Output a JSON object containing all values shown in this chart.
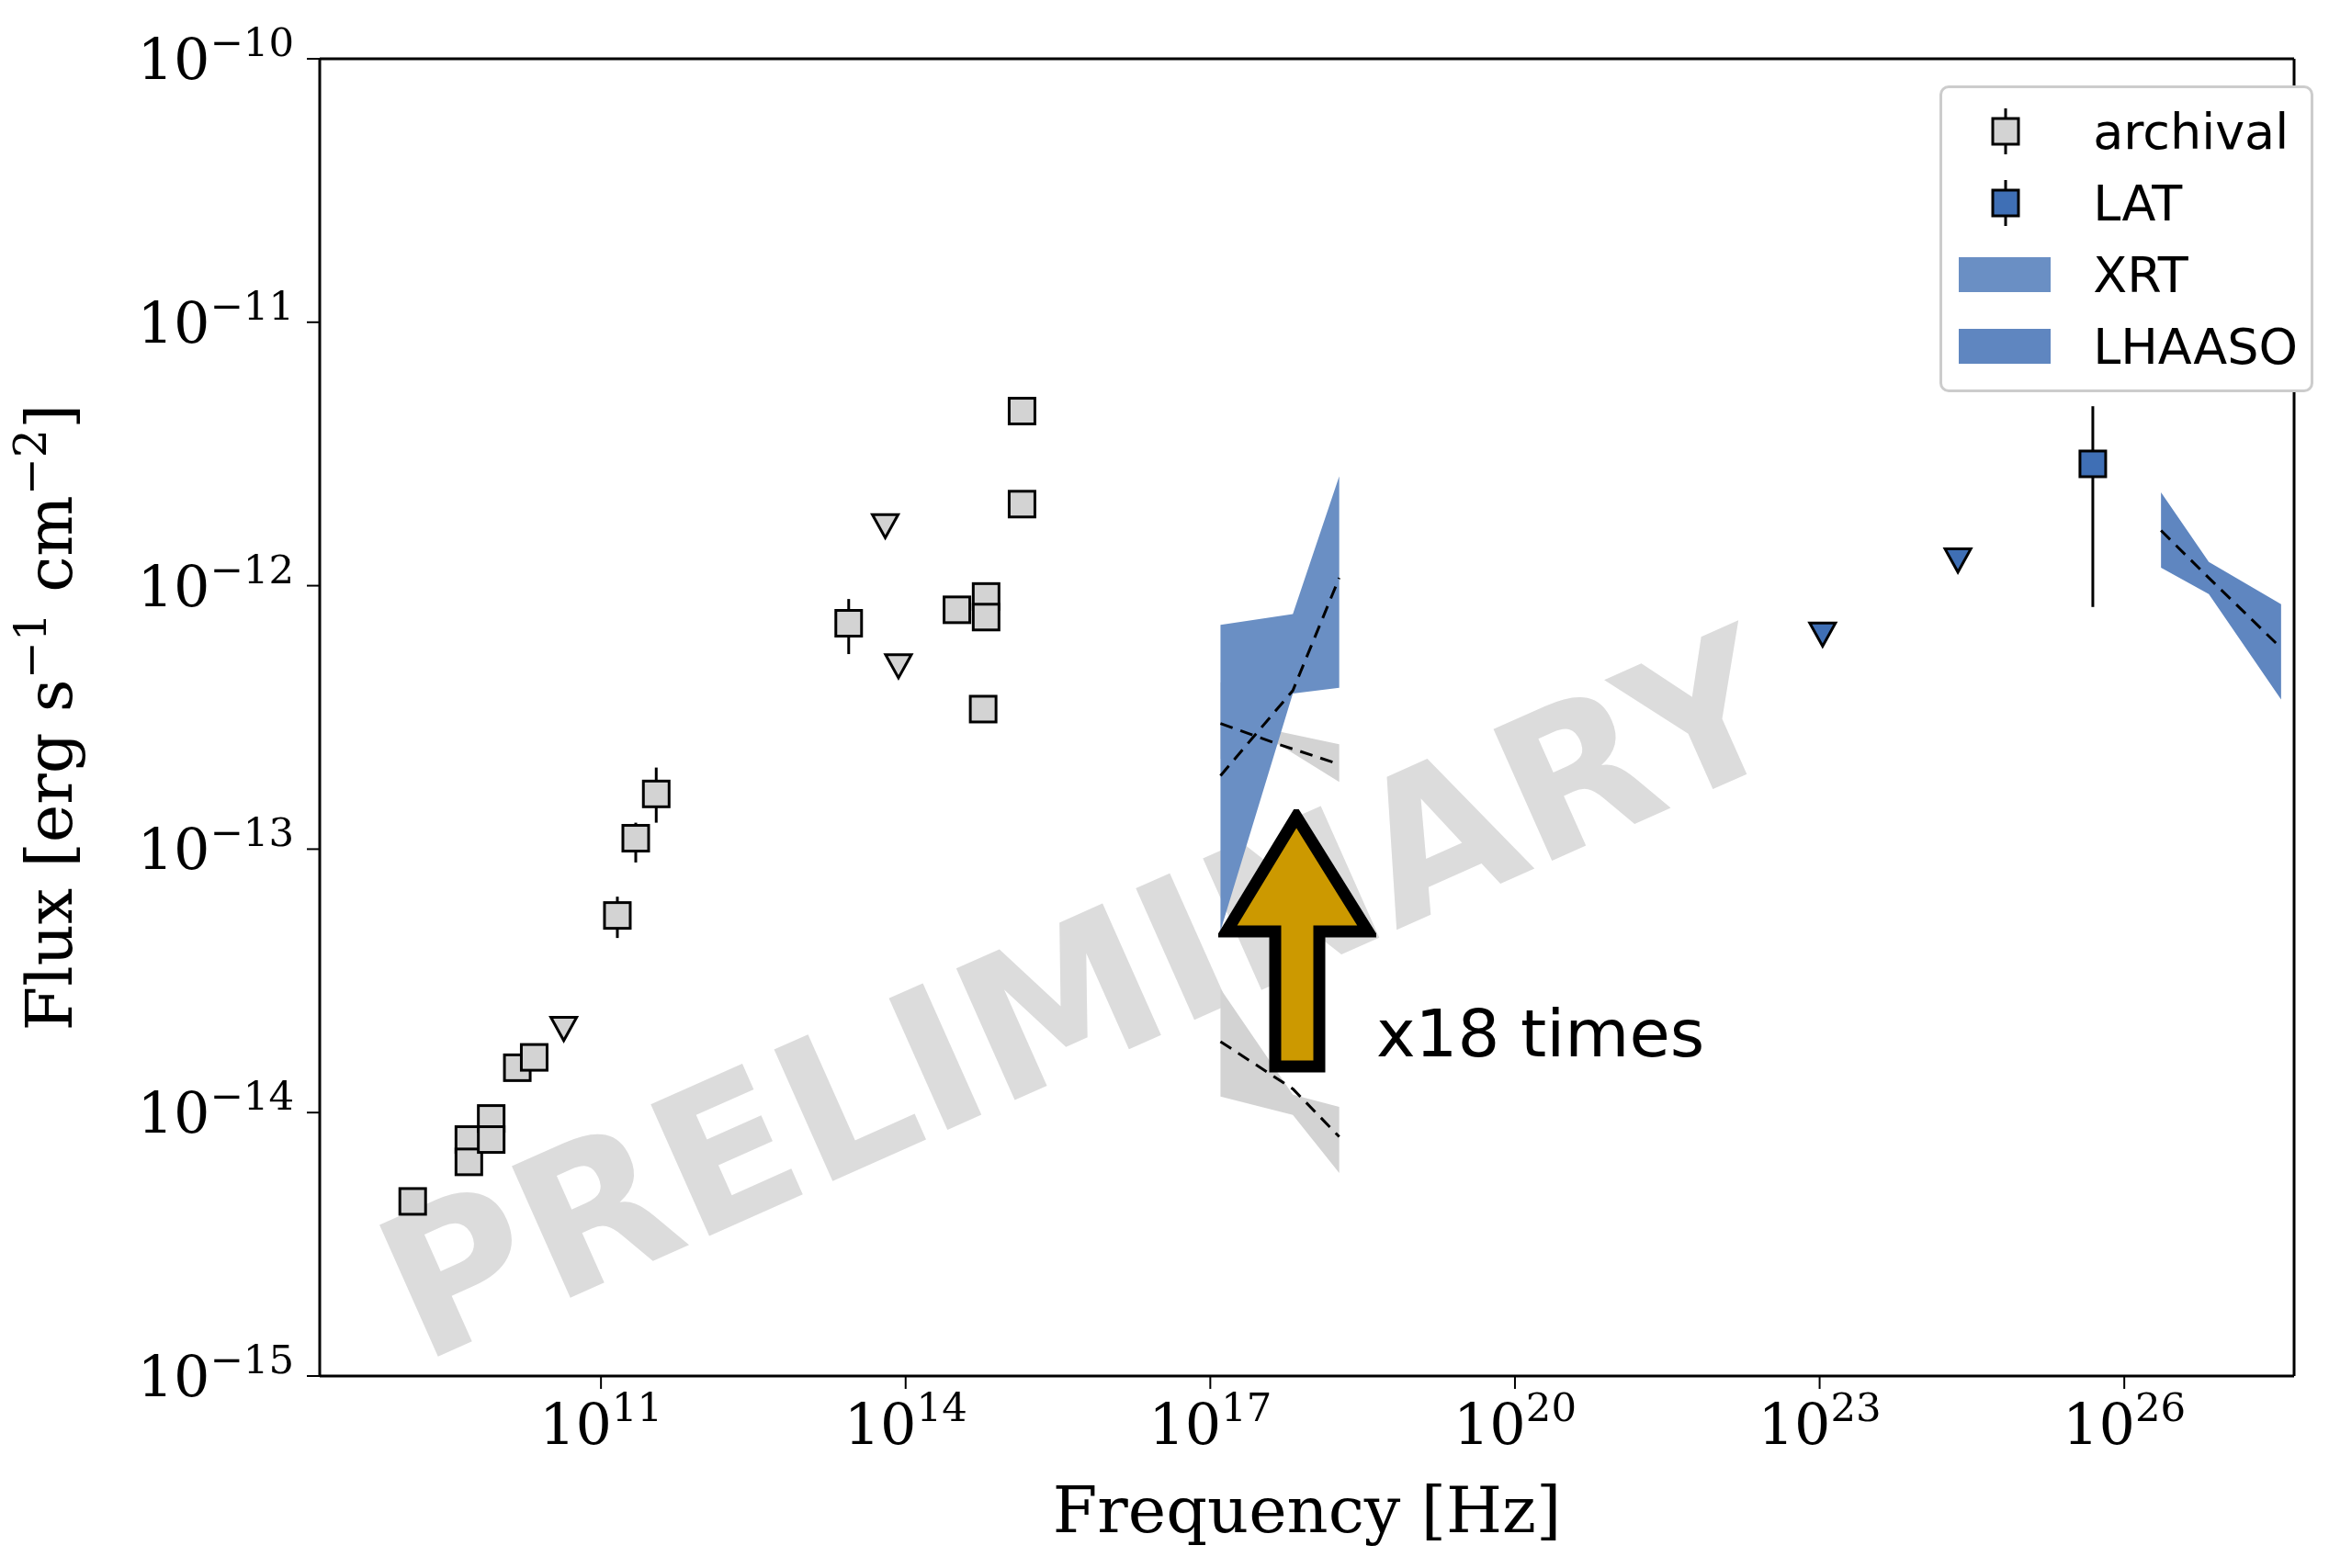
{
  "chart_data": {
    "type": "scatter",
    "xlabel": "Frequency [Hz]",
    "ylabel": "Flux [erg s$^{−1}$ cm$^{−2}$]",
    "log": "xy",
    "legend": "top right",
    "xlim": [
      170000000.0,
      4.7e+27
    ],
    "ylim": [
      1e-15,
      1e-10
    ],
    "xticks": [
      {
        "value": 100000000000.0,
        "label": "10$^{11}$"
      },
      {
        "value": 100000000000000.0,
        "label": "10$^{14}$"
      },
      {
        "value": 1e+17,
        "label": "10$^{17}$"
      },
      {
        "value": 1e+20,
        "label": "10$^{20}$"
      },
      {
        "value": 1e+23,
        "label": "10$^{23}$"
      },
      {
        "value": 1e+26,
        "label": "10$^{26}$"
      }
    ],
    "yticks": [
      {
        "value": 1e-15,
        "label": "10$^{−15}$"
      },
      {
        "value": 1e-14,
        "label": "10$^{−14}$"
      },
      {
        "value": 1e-13,
        "label": "10$^{−13}$"
      },
      {
        "value": 1e-12,
        "label": "10$^{−12}$"
      },
      {
        "value": 1e-11,
        "label": "10$^{−11}$"
      },
      {
        "value": 1e-10,
        "label": "10$^{−10}$"
      }
    ],
    "annotations": [
      "x18 times",
      "PRELIMINARY"
    ],
    "series": [
      {
        "name": "archival",
        "marker": "square",
        "color": "#d3d3d3",
        "x": [
          1400000000.0,
          5000000000.0,
          5000000000.0,
          8300000000.0,
          8300000000.0,
          15000000000.0,
          22000000000.0,
          145000000000.0,
          220000000000.0,
          350000000000.0,
          27500000000000.0,
          320000000000000.0,
          620000000000000.0,
          620000000000000.0,
          580000000000000.0,
          1400000000000000.0,
          1400000000000000.0
        ],
        "values": [
          4.6e-15,
          7.9e-15,
          6.5e-15,
          9.5e-15,
          7.9e-15,
          1.48e-14,
          1.62e-14,
          5.6e-14,
          1.1e-13,
          1.62e-13,
          7.2e-13,
          8.1e-13,
          9.1e-13,
          7.6e-13,
          3.4e-13,
          2.04e-12,
          4.6e-12
        ],
        "errors": [
          null,
          null,
          null,
          null,
          null,
          null,
          null,
          [
            4.6e-14,
            6.6e-14
          ],
          [
            8.9e-14,
            1.26e-13
          ],
          [
            1.26e-13,
            2.04e-13
          ],
          [
            5.5e-13,
            8.9e-13
          ],
          null,
          null,
          null,
          null,
          null,
          null
        ]
      },
      {
        "marker": "triangle",
        "color": "#d3d3d3",
        "x": [
          43000000000.0,
          63000000000000.0,
          85000000000000.0
        ],
        "values": [
          2.1e-14,
          1.7e-12,
          5e-13
        ]
      },
      {
        "name": "LAT",
        "marker": "square",
        "color": "#3f6fb5",
        "x": [
          4.9e+25
        ],
        "values": [
          2.9e-12
        ],
        "errors": [
          [
            8.3e-13,
            4.8e-12
          ]
        ]
      },
      {
        "marker": "triangle",
        "color": "#3f6fb5",
        "x": [
          1.07e+23,
          2.3e+24
        ],
        "values": [
          6.6e-13,
          1.26e-12
        ]
      },
      {
        "type": "line",
        "color": "#000000",
        "line_style": "dashed",
        "x": [
          1.26e+17,
          6.5e+17,
          1.86e+18
        ],
        "values": [
          1.86e-14,
          1.23e-14,
          8.1e-15
        ]
      },
      {
        "type": "line",
        "color": "#d3d3d3",
        "x": [
          1.26e+17,
          6.5e+17,
          1.86e+18
        ],
        "values": [
          null,
          null,
          null
        ],
        "lower": [
          1.15e-14,
          9.8e-15,
          5.9e-15
        ],
        "upper": [
          2.95e-14,
          1.17e-14,
          1.05e-14
        ]
      },
      {
        "type": "line",
        "color": "#000000",
        "line_style": "dashed",
        "x": [
          1.26e+17,
          4.7e+17,
          1.86e+18
        ],
        "values": [
          3e-13,
          2.5e-13,
          2.1e-13
        ]
      },
      {
        "type": "line",
        "color": "#d3d3d3",
        "x": [
          1.26e+17,
          4.7e+17,
          1.86e+18
        ],
        "values": [
          null,
          null,
          null
        ],
        "lower": [
          2.2e-13,
          2.5e-13,
          1.8e-13
        ],
        "upper": [
          4.3e-13,
          2.8e-13,
          2.5e-13
        ]
      },
      {
        "type": "line",
        "color": "#000000",
        "line_style": "dashed",
        "x": [
          1.26e+17,
          6.5e+17,
          1.86e+18
        ],
        "values": [
          1.9e-13,
          4e-13,
          1.07e-12
        ]
      },
      {
        "name": "XRT",
        "type": "line",
        "color": "#6a8fc4",
        "x": [
          1.26e+17,
          6.5e+17,
          1.86e+18
        ],
        "values": [
          null,
          null,
          null
        ],
        "lower": [
          4.9e-14,
          3.9e-13,
          4.1e-13
        ],
        "upper": [
          7.1e-13,
          7.8e-13,
          2.6e-12
        ]
      },
      {
        "type": "line",
        "color": "#000000",
        "line_style": "dashed",
        "x": [
          2.3e+26,
          6.8e+26,
          3.5e+27
        ],
        "values": [
          1.62e-12,
          1.07e-12,
          5.8e-13
        ]
      },
      {
        "name": "LHAASO",
        "type": "line",
        "color": "#5f86c0",
        "x": [
          2.3e+26,
          6.8e+26,
          3.5e+27
        ],
        "values": [
          null,
          null,
          null
        ],
        "lower": [
          1.17e-12,
          9.3e-13,
          3.7e-13
        ],
        "upper": [
          2.26e-12,
          1.23e-12,
          8.5e-13
        ]
      }
    ]
  }
}
